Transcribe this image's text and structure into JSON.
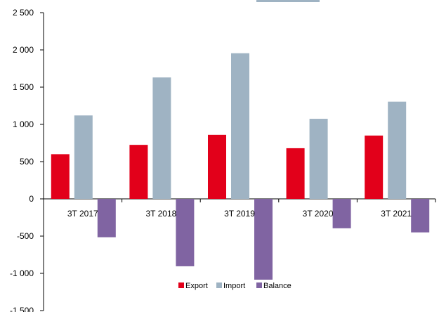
{
  "chart_data": {
    "type": "bar",
    "categories": [
      "3T 2017",
      "3T 2018",
      "3T 2019",
      "3T 2020",
      "3T 2021"
    ],
    "series": [
      {
        "name": "Export",
        "color": "#e2001a",
        "values": [
          600,
          725,
          860,
          680,
          850
        ]
      },
      {
        "name": "Import",
        "color": "#9fb3c3",
        "values": [
          1120,
          1630,
          1955,
          1075,
          1305
        ]
      },
      {
        "name": "Balance",
        "color": "#8064a2",
        "values": [
          -515,
          -905,
          -1085,
          -395,
          -450
        ]
      }
    ],
    "ylim": [
      -1500,
      2500
    ],
    "yticks": [
      2500,
      2000,
      1500,
      1000,
      500,
      0,
      -500,
      -1000,
      -1500
    ],
    "ytick_labels": [
      "2 500",
      "2 000",
      "1 500",
      "1 000",
      "500",
      "0",
      "-500",
      "-1 000",
      "-1 500"
    ],
    "legend_position": "bottom-center",
    "grid": false,
    "title": "",
    "xlabel": "",
    "ylabel": ""
  }
}
